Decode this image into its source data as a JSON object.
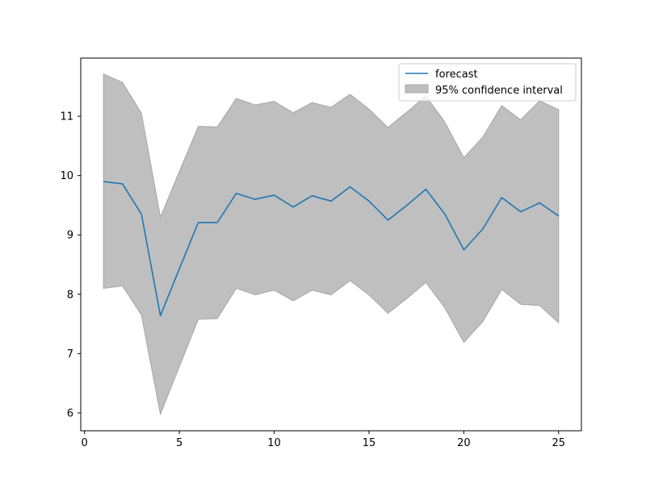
{
  "chart_data": {
    "type": "line",
    "title": "",
    "xlabel": "",
    "ylabel": "",
    "xlim": [
      -0.2,
      26.2
    ],
    "ylim": [
      5.7,
      11.98
    ],
    "xticks": [
      0,
      5,
      10,
      15,
      20,
      25
    ],
    "yticks": [
      6,
      7,
      8,
      9,
      10,
      11
    ],
    "grid": false,
    "legend_position": "top-right",
    "x": [
      1,
      2,
      3,
      4,
      5,
      6,
      7,
      8,
      9,
      10,
      11,
      12,
      13,
      14,
      15,
      16,
      17,
      18,
      19,
      20,
      21,
      22,
      23,
      24,
      25
    ],
    "series": [
      {
        "name": "forecast",
        "kind": "line",
        "color": "#1f77b4",
        "values": [
          9.9,
          9.86,
          9.35,
          7.64,
          8.43,
          9.21,
          9.21,
          9.7,
          9.6,
          9.67,
          9.47,
          9.66,
          9.57,
          9.81,
          9.57,
          9.25,
          9.5,
          9.77,
          9.35,
          8.75,
          9.1,
          9.63,
          9.39,
          9.54,
          9.32
        ]
      },
      {
        "name": "95% confidence interval",
        "kind": "band",
        "color": "#bfbfbf",
        "edge_color": "#a6a6a6",
        "lower": [
          8.1,
          8.14,
          7.65,
          5.98,
          6.78,
          7.58,
          7.59,
          8.1,
          7.99,
          8.07,
          7.89,
          8.07,
          7.99,
          8.23,
          7.99,
          7.68,
          7.93,
          8.2,
          7.77,
          7.19,
          7.54,
          8.08,
          7.83,
          7.81,
          7.52
        ],
        "upper": [
          11.71,
          11.57,
          11.05,
          9.3,
          10.07,
          10.83,
          10.82,
          11.3,
          11.19,
          11.25,
          11.06,
          11.23,
          11.15,
          11.37,
          11.12,
          10.81,
          11.07,
          11.34,
          10.9,
          10.3,
          10.65,
          11.18,
          10.94,
          11.26,
          11.11
        ]
      }
    ]
  }
}
